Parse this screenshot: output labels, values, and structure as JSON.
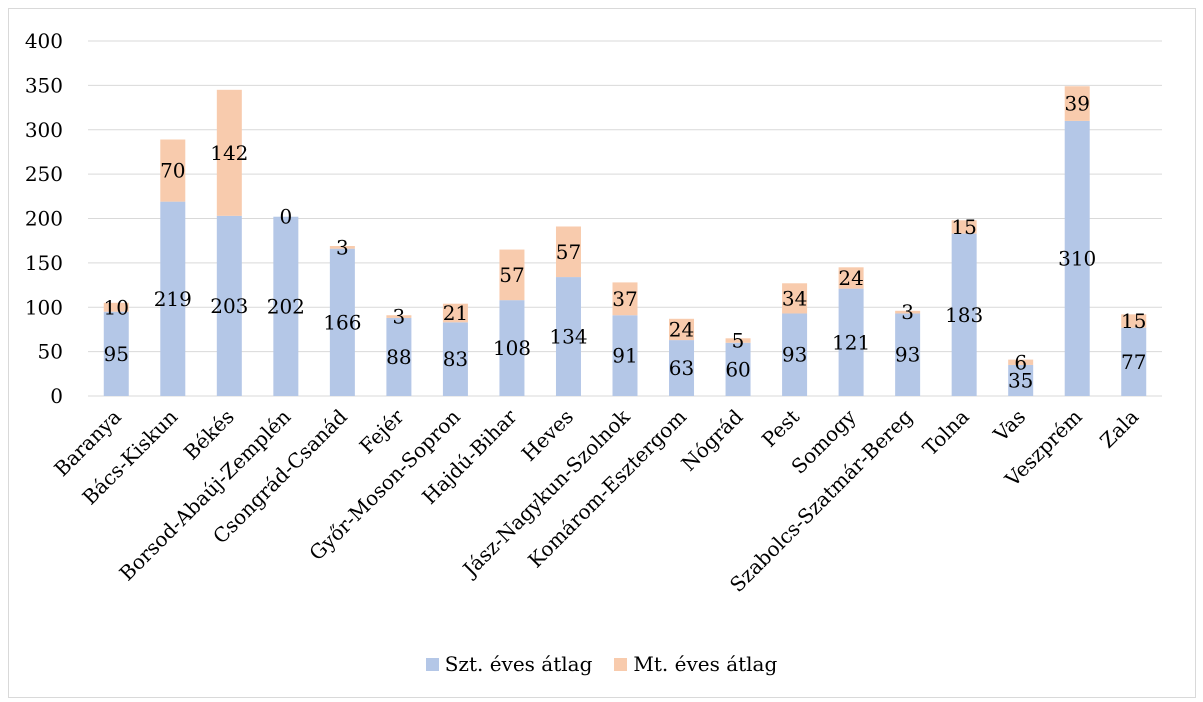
{
  "chart_data": {
    "type": "bar",
    "stacked": true,
    "categories": [
      "Baranya",
      "Bács-Kiskun",
      "Békés",
      "Borsod-Abaúj-Zemplén",
      "Csongrád-Csanád",
      "Fejér",
      "Győr-Moson-Sopron",
      "Hajdú-Bihar",
      "Heves",
      "Jász-Nagykun-Szolnok",
      "Komárom-Esztergom",
      "Nógrád",
      "Pest",
      "Somogy",
      "Szabolcs-Szatmár-Bereg",
      "Tolna",
      "Vas",
      "Veszprém",
      "Zala"
    ],
    "series": [
      {
        "name": "Szt. éves átlag",
        "color": "#b4c7e7",
        "values": [
          95,
          219,
          203,
          202,
          166,
          88,
          83,
          108,
          134,
          91,
          63,
          60,
          93,
          121,
          93,
          183,
          35,
          310,
          77
        ]
      },
      {
        "name": "Mt. éves átlag",
        "color": "#f8cbad",
        "values": [
          10,
          70,
          142,
          0,
          3,
          3,
          21,
          57,
          57,
          37,
          24,
          5,
          34,
          24,
          3,
          15,
          6,
          39,
          15
        ]
      }
    ],
    "ylim": [
      0,
      400
    ],
    "yticks": [
      "0",
      "50",
      "100",
      "150",
      "200",
      "250",
      "300",
      "350",
      "400"
    ],
    "grid": true,
    "legend": "bottom"
  }
}
